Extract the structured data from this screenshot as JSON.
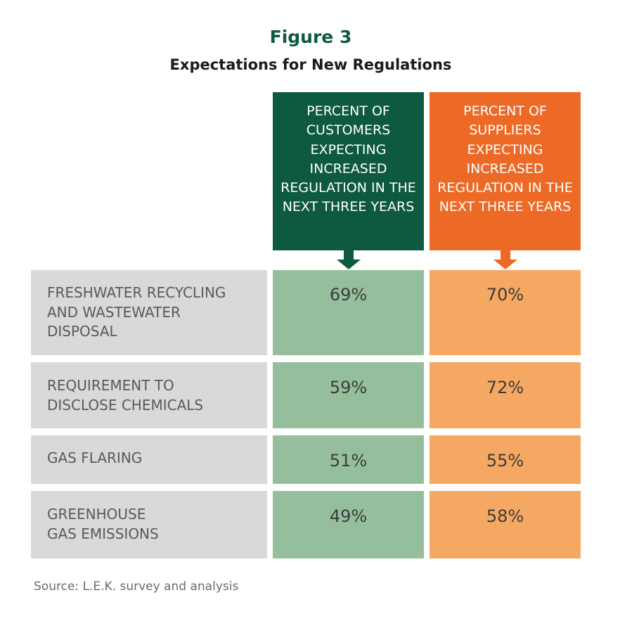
{
  "figure_label": "Figure 3",
  "title": "Expectations for New Regulations",
  "source": "Source: L.E.K. survey and analysis",
  "colors": {
    "customers": "#0e5a40",
    "customers_light": "#95bf9c",
    "suppliers": "#ec6a26",
    "suppliers_light": "#f5a862",
    "row_label_bg": "#d9d9d9"
  },
  "chart_data": {
    "type": "table",
    "title": "Expectations for New Regulations",
    "columns": [
      "PERCENT OF CUSTOMERS EXPECTING INCREASED REGULATION IN THE NEXT THREE YEARS",
      "PERCENT OF SUPPLIERS EXPECTING INCREASED REGULATION IN THE NEXT THREE YEARS"
    ],
    "rows": [
      {
        "label": "FRESHWATER RECYCLING AND WASTEWATER DISPOSAL",
        "customers": "69%",
        "suppliers": "70%"
      },
      {
        "label": "REQUIREMENT TO DISCLOSE CHEMICALS",
        "customers": "59%",
        "suppliers": "72%"
      },
      {
        "label": "GAS FLARING",
        "customers": "51%",
        "suppliers": "55%"
      },
      {
        "label": "GREENHOUSE GAS EMISSIONS",
        "customers": "49%",
        "suppliers": "58%"
      }
    ]
  }
}
